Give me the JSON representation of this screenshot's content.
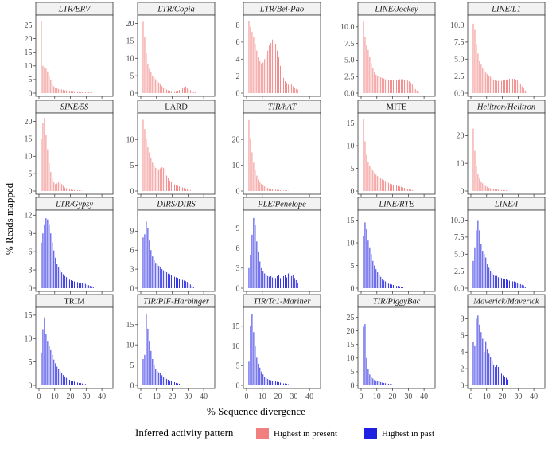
{
  "chart_data": {
    "type": "bar",
    "figure": {
      "xlabel": "% Sequence divergence",
      "ylabel": "% Reads mapped",
      "xlim": [
        0,
        45
      ],
      "xticks": [
        0,
        10,
        20,
        30,
        40
      ],
      "legend": {
        "title": "Inferred activity pattern",
        "placement": "bottom",
        "entries": [
          {
            "label": "Highest in present",
            "color": "#f08080"
          },
          {
            "label": "Highest in past",
            "color": "#2020e0"
          }
        ]
      }
    },
    "panels": [
      {
        "title": "LTR/ERV",
        "italic": true,
        "group": "present",
        "ylim": [
          0,
          27.5
        ],
        "yticks": [
          0,
          5,
          10,
          15,
          20,
          25
        ],
        "values": [
          26.5,
          10.0,
          9.5,
          9.0,
          8.0,
          6.5,
          5.0,
          3.5,
          2.5,
          2.0,
          1.8,
          1.5,
          1.5,
          1.3,
          1.2,
          1.0,
          1.0,
          0.9,
          0.9,
          0.8,
          0.8,
          0.7,
          0.7,
          0.6,
          0.6,
          0.5,
          0.5,
          0.4,
          0.4,
          0.3,
          0.3,
          0.2,
          0.2
        ]
      },
      {
        "title": "LTR/Copia",
        "italic": true,
        "group": "present",
        "ylim": [
          0,
          21.5
        ],
        "yticks": [
          0,
          5,
          10,
          15,
          20
        ],
        "values": [
          20.5,
          16.0,
          11.5,
          8.5,
          7.0,
          6.0,
          5.0,
          4.5,
          4.0,
          3.5,
          3.0,
          2.5,
          2.0,
          1.6,
          1.3,
          1.0,
          0.8,
          0.7,
          0.6,
          0.5,
          0.5,
          0.6,
          0.7,
          0.9,
          1.1,
          1.4,
          1.7,
          1.9,
          1.6,
          1.2,
          0.9,
          0.6,
          0.4,
          0.3
        ]
      },
      {
        "title": "LTR/Bel-Pao",
        "italic": true,
        "group": "present",
        "ylim": [
          0,
          8.8
        ],
        "yticks": [
          0,
          2,
          4,
          6,
          8
        ],
        "values": [
          8.5,
          7.8,
          7.2,
          6.6,
          5.8,
          5.0,
          4.3,
          3.8,
          3.5,
          3.6,
          4.0,
          4.5,
          5.0,
          5.6,
          5.9,
          6.3,
          6.1,
          5.8,
          5.0,
          4.2,
          3.2,
          2.4,
          1.8,
          1.4,
          1.2,
          1.0,
          0.9,
          1.1,
          0.8,
          0.6,
          0.5,
          0.4
        ]
      },
      {
        "title": "LINE/Jockey",
        "italic": true,
        "group": "present",
        "ylim": [
          0,
          11.3
        ],
        "yticks": [
          0.0,
          2.5,
          5.0,
          7.5,
          10.0
        ],
        "values": [
          10.8,
          8.5,
          7.2,
          6.5,
          5.5,
          4.5,
          3.8,
          3.2,
          2.8,
          2.6,
          2.5,
          2.4,
          2.3,
          2.2,
          2.1,
          2.1,
          2.0,
          2.0,
          2.0,
          2.0,
          2.0,
          2.0,
          2.0,
          2.1,
          2.1,
          2.1,
          2.0,
          2.0,
          1.9,
          1.8,
          1.6,
          1.3,
          0.9,
          0.6,
          0.4,
          0.2
        ]
      },
      {
        "title": "LINE/L1",
        "italic": true,
        "group": "present",
        "ylim": [
          0,
          11.0
        ],
        "yticks": [
          0.0,
          2.5,
          5.0,
          7.5,
          10.0
        ],
        "values": [
          10.2,
          9.3,
          7.2,
          5.8,
          4.8,
          4.2,
          3.7,
          3.3,
          3.0,
          2.8,
          2.6,
          2.4,
          2.2,
          2.0,
          1.9,
          1.8,
          1.8,
          1.8,
          1.8,
          1.9,
          1.9,
          2.0,
          2.0,
          2.1,
          2.1,
          2.1,
          2.1,
          2.0,
          1.9,
          1.7,
          1.4,
          1.0,
          0.7,
          0.4,
          0.2
        ]
      },
      {
        "title": "SINE/5S",
        "italic": true,
        "group": "present",
        "ylim": [
          0,
          21.5
        ],
        "yticks": [
          0,
          5,
          10,
          15,
          20
        ],
        "values": [
          15.0,
          19.5,
          21.0,
          16.0,
          12.0,
          8.0,
          5.5,
          3.5,
          2.5,
          2.0,
          2.2,
          2.5,
          2.8,
          2.0,
          1.5,
          1.0,
          0.8,
          0.6,
          0.5,
          0.4,
          0.3,
          0.3,
          0.2,
          0.2,
          0.2,
          0.1,
          0.1,
          0.1
        ]
      },
      {
        "title": "LARD",
        "italic": false,
        "group": "present",
        "ylim": [
          0,
          14.5
        ],
        "yticks": [
          0,
          5,
          10
        ],
        "values": [
          13.8,
          12.0,
          10.0,
          8.5,
          7.5,
          6.5,
          5.5,
          5.0,
          4.5,
          4.3,
          4.2,
          4.4,
          4.6,
          4.5,
          4.2,
          3.0,
          2.5,
          2.0,
          1.7,
          1.5,
          1.3,
          1.2,
          1.0,
          0.9,
          0.8,
          0.7,
          0.6,
          0.5,
          0.4,
          0.3,
          0.2
        ]
      },
      {
        "title": "TIR/hAT",
        "italic": true,
        "group": "present",
        "ylim": [
          0,
          29.0
        ],
        "yticks": [
          0,
          10,
          20
        ],
        "values": [
          27.5,
          20.5,
          15.0,
          11.0,
          8.0,
          6.0,
          4.5,
          3.5,
          2.8,
          2.2,
          1.8,
          1.5,
          1.2,
          1.0,
          0.8,
          0.7,
          0.6,
          0.5,
          0.4,
          0.4,
          0.3,
          0.3,
          0.2,
          0.2,
          0.2,
          0.1,
          0.1
        ]
      },
      {
        "title": "MITE",
        "italic": false,
        "group": "present",
        "ylim": [
          0,
          16.5
        ],
        "yticks": [
          0,
          5,
          10,
          15
        ],
        "values": [
          15.8,
          11.0,
          8.0,
          6.5,
          5.5,
          5.0,
          4.5,
          4.0,
          3.6,
          3.3,
          3.0,
          2.8,
          2.6,
          2.4,
          2.2,
          2.0,
          1.8,
          1.6,
          1.5,
          1.4,
          1.3,
          1.2,
          1.1,
          1.0,
          0.9,
          0.8,
          0.7,
          0.6,
          0.5,
          0.4,
          0.3,
          0.2
        ]
      },
      {
        "title": "Helitron/Helitron",
        "italic": true,
        "group": "present",
        "ylim": [
          0,
          27.0
        ],
        "yticks": [
          0,
          10,
          20
        ],
        "values": [
          22.5,
          14.5,
          9.0,
          6.0,
          4.5,
          3.5,
          2.8,
          2.2,
          1.8,
          1.5,
          1.2,
          1.0,
          0.9,
          0.8,
          0.7,
          0.6,
          0.5,
          0.4,
          0.3,
          0.3,
          0.2,
          0.2,
          0.1
        ]
      },
      {
        "title": "LTR/Gypsy",
        "italic": true,
        "group": "past",
        "ylim": [
          0,
          12.3
        ],
        "yticks": [
          0,
          3,
          6,
          9,
          12
        ],
        "values": [
          7.5,
          9.0,
          10.5,
          11.5,
          11.3,
          10.5,
          9.0,
          7.5,
          6.2,
          5.0,
          4.0,
          3.4,
          3.0,
          2.6,
          2.3,
          2.0,
          1.8,
          1.6,
          1.4,
          1.3,
          1.2,
          1.1,
          1.0,
          1.0,
          0.9,
          0.9,
          0.8,
          0.8,
          0.7,
          0.6,
          0.5,
          0.4,
          0.3,
          0.2
        ]
      },
      {
        "title": "DIRS/DIRS",
        "italic": true,
        "group": "past",
        "ylim": [
          0,
          11.8
        ],
        "yticks": [
          0,
          3,
          6,
          9
        ],
        "values": [
          8.0,
          8.5,
          10.5,
          9.5,
          7.5,
          6.0,
          5.0,
          4.5,
          4.0,
          3.7,
          3.5,
          3.3,
          3.0,
          2.8,
          2.6,
          2.5,
          2.3,
          2.2,
          2.0,
          1.9,
          1.8,
          1.7,
          1.6,
          1.5,
          1.4,
          1.3,
          1.2,
          1.1,
          1.0,
          0.8,
          0.6,
          0.4,
          0.2
        ]
      },
      {
        "title": "PLE/Penelope",
        "italic": true,
        "group": "past",
        "ylim": [
          0,
          11.2
        ],
        "yticks": [
          0,
          3,
          6,
          9
        ],
        "values": [
          3.0,
          5.0,
          8.0,
          10.5,
          9.5,
          7.0,
          5.5,
          4.0,
          3.0,
          2.5,
          2.2,
          2.0,
          1.8,
          1.7,
          1.8,
          1.6,
          1.7,
          1.5,
          1.8,
          2.0,
          1.5,
          3.0,
          1.8,
          2.0,
          1.6,
          2.2,
          2.5,
          1.8,
          2.0,
          1.5,
          1.2,
          0.8
        ]
      },
      {
        "title": "LINE/RTE",
        "italic": true,
        "group": "past",
        "ylim": [
          0,
          16.5
        ],
        "yticks": [
          0,
          5,
          10,
          15
        ],
        "values": [
          11.5,
          14.5,
          13.0,
          10.5,
          9.0,
          7.5,
          6.0,
          5.0,
          4.2,
          3.5,
          3.0,
          2.5,
          2.0,
          1.7,
          1.5,
          1.2,
          1.0,
          0.9,
          0.8,
          0.7,
          0.6,
          0.5,
          0.5,
          0.4,
          0.3,
          0.2
        ]
      },
      {
        "title": "LINE/I",
        "italic": true,
        "group": "past",
        "ylim": [
          0,
          11.0
        ],
        "yticks": [
          0.0,
          2.5,
          5.0,
          7.5,
          10.0
        ],
        "values": [
          4.0,
          6.0,
          8.5,
          10.0,
          8.5,
          6.5,
          5.5,
          5.0,
          4.5,
          3.5,
          3.0,
          2.5,
          2.2,
          2.0,
          1.8,
          1.8,
          1.6,
          1.8,
          1.5,
          1.4,
          1.3,
          1.4,
          1.2,
          1.1,
          1.2,
          1.0,
          1.0,
          0.9,
          0.8,
          0.7,
          0.6,
          0.5,
          0.4,
          0.2
        ]
      },
      {
        "title": "TRIM",
        "italic": false,
        "group": "past",
        "ylim": [
          0,
          16.0
        ],
        "yticks": [
          0,
          5,
          10,
          15
        ],
        "values": [
          7.0,
          12.0,
          14.5,
          11.0,
          9.5,
          8.5,
          7.5,
          6.5,
          5.5,
          4.7,
          4.0,
          3.5,
          3.0,
          2.6,
          2.2,
          1.9,
          1.6,
          1.4,
          1.2,
          1.0,
          0.9,
          0.8,
          0.7,
          0.6,
          0.5,
          0.5,
          0.4,
          0.3,
          0.3,
          0.2,
          0.1
        ]
      },
      {
        "title": "TIR/PIF-Harbinger",
        "italic": true,
        "group": "past",
        "ylim": [
          0,
          18.5
        ],
        "yticks": [
          0,
          5,
          10,
          15
        ],
        "values": [
          6.5,
          7.5,
          17.5,
          14.0,
          11.0,
          8.5,
          6.5,
          5.0,
          4.0,
          3.5,
          3.2,
          3.0,
          2.5,
          2.0,
          1.8,
          1.6,
          1.4,
          1.2,
          1.0,
          0.9,
          0.8,
          0.6,
          0.5,
          0.4,
          0.3,
          0.2
        ]
      },
      {
        "title": "TIR/Tc1-Mariner",
        "italic": true,
        "group": "past",
        "ylim": [
          0,
          19.0
        ],
        "yticks": [
          0,
          5,
          10,
          15
        ],
        "values": [
          6.0,
          15.0,
          18.0,
          13.5,
          10.0,
          7.0,
          5.5,
          4.5,
          3.5,
          2.8,
          2.2,
          1.8,
          1.6,
          1.4,
          1.3,
          1.2,
          1.1,
          1.0,
          0.9,
          0.8,
          0.7,
          0.6,
          0.5,
          0.5,
          0.4,
          0.3,
          0.2
        ]
      },
      {
        "title": "TIR/PiggyBac",
        "italic": true,
        "group": "past",
        "ylim": [
          0,
          27.5
        ],
        "yticks": [
          0,
          5,
          10,
          15,
          20,
          25
        ],
        "values": [
          21.5,
          22.5,
          10.0,
          6.0,
          4.0,
          3.0,
          2.5,
          2.0,
          1.8,
          1.6,
          1.4,
          1.2,
          1.0,
          0.9,
          0.8,
          0.7,
          0.6,
          0.5,
          0.4,
          0.3,
          0.3,
          0.2
        ]
      },
      {
        "title": "Maverick/Maverick",
        "italic": true,
        "group": "past",
        "ylim": [
          0,
          9.0
        ],
        "yticks": [
          0,
          2,
          4,
          6,
          8
        ],
        "values": [
          5.2,
          4.8,
          8.0,
          8.4,
          7.3,
          6.4,
          5.6,
          4.0,
          5.3,
          4.3,
          3.8,
          3.4,
          3.0,
          2.5,
          2.2,
          2.5,
          2.2,
          1.8,
          1.4,
          1.2,
          1.0,
          0.9,
          0.7
        ]
      }
    ]
  }
}
